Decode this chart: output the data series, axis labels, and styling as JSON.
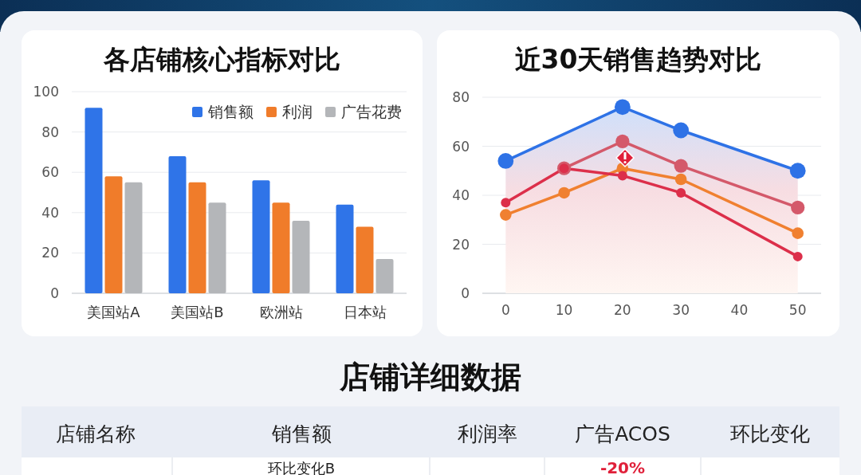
{
  "chart_data": [
    {
      "type": "bar",
      "title": "各店铺核心指标对比",
      "categories": [
        "美国站A",
        "美国站B",
        "欧洲站",
        "日本站"
      ],
      "ylim": [
        0,
        100
      ],
      "yticks": [
        0,
        20,
        40,
        60,
        80,
        100
      ],
      "grid": "y",
      "legend": "top right",
      "series": [
        {
          "name": "销售额",
          "color": "#2f74e8",
          "values": [
            92,
            68,
            56,
            44
          ]
        },
        {
          "name": "利润",
          "color": "#f07c2a",
          "values": [
            58,
            55,
            45,
            33
          ]
        },
        {
          "name": "广告花费",
          "color": "#b4b6b9",
          "values": [
            55,
            45,
            36,
            17
          ]
        }
      ]
    },
    {
      "type": "line",
      "title": "近30天销售趋势对比",
      "xlim": [
        -4,
        54
      ],
      "xticks": [
        0,
        10,
        20,
        30,
        40,
        50
      ],
      "ylim": [
        0,
        80
      ],
      "yticks": [
        0,
        20,
        40,
        60,
        80
      ],
      "grid": "y",
      "marker": "circle",
      "series": [
        {
          "type": "area",
          "color": "#2e72e6",
          "x": [
            0,
            20,
            30,
            50
          ],
          "values": [
            54,
            76,
            66.5,
            50
          ]
        },
        {
          "color": "#d4596a",
          "x": [
            10,
            20,
            30,
            50
          ],
          "values": [
            51,
            62,
            52,
            35
          ]
        },
        {
          "color": "#f08030",
          "x": [
            0,
            10,
            20,
            30,
            50
          ],
          "values": [
            32,
            41,
            51,
            46.5,
            24.5
          ]
        },
        {
          "color": "#dc2f4a",
          "x": [
            0,
            10,
            20,
            30,
            50
          ],
          "values": [
            37,
            51,
            48,
            41,
            15
          ]
        }
      ]
    },
    {
      "type": "other",
      "title": "店铺详细数据",
      "annotations": [
        "店铺名称",
        "销售额",
        "利润率",
        "广告ACOS",
        "环比变化",
        "环比变化B",
        "-20%"
      ]
    }
  ]
}
